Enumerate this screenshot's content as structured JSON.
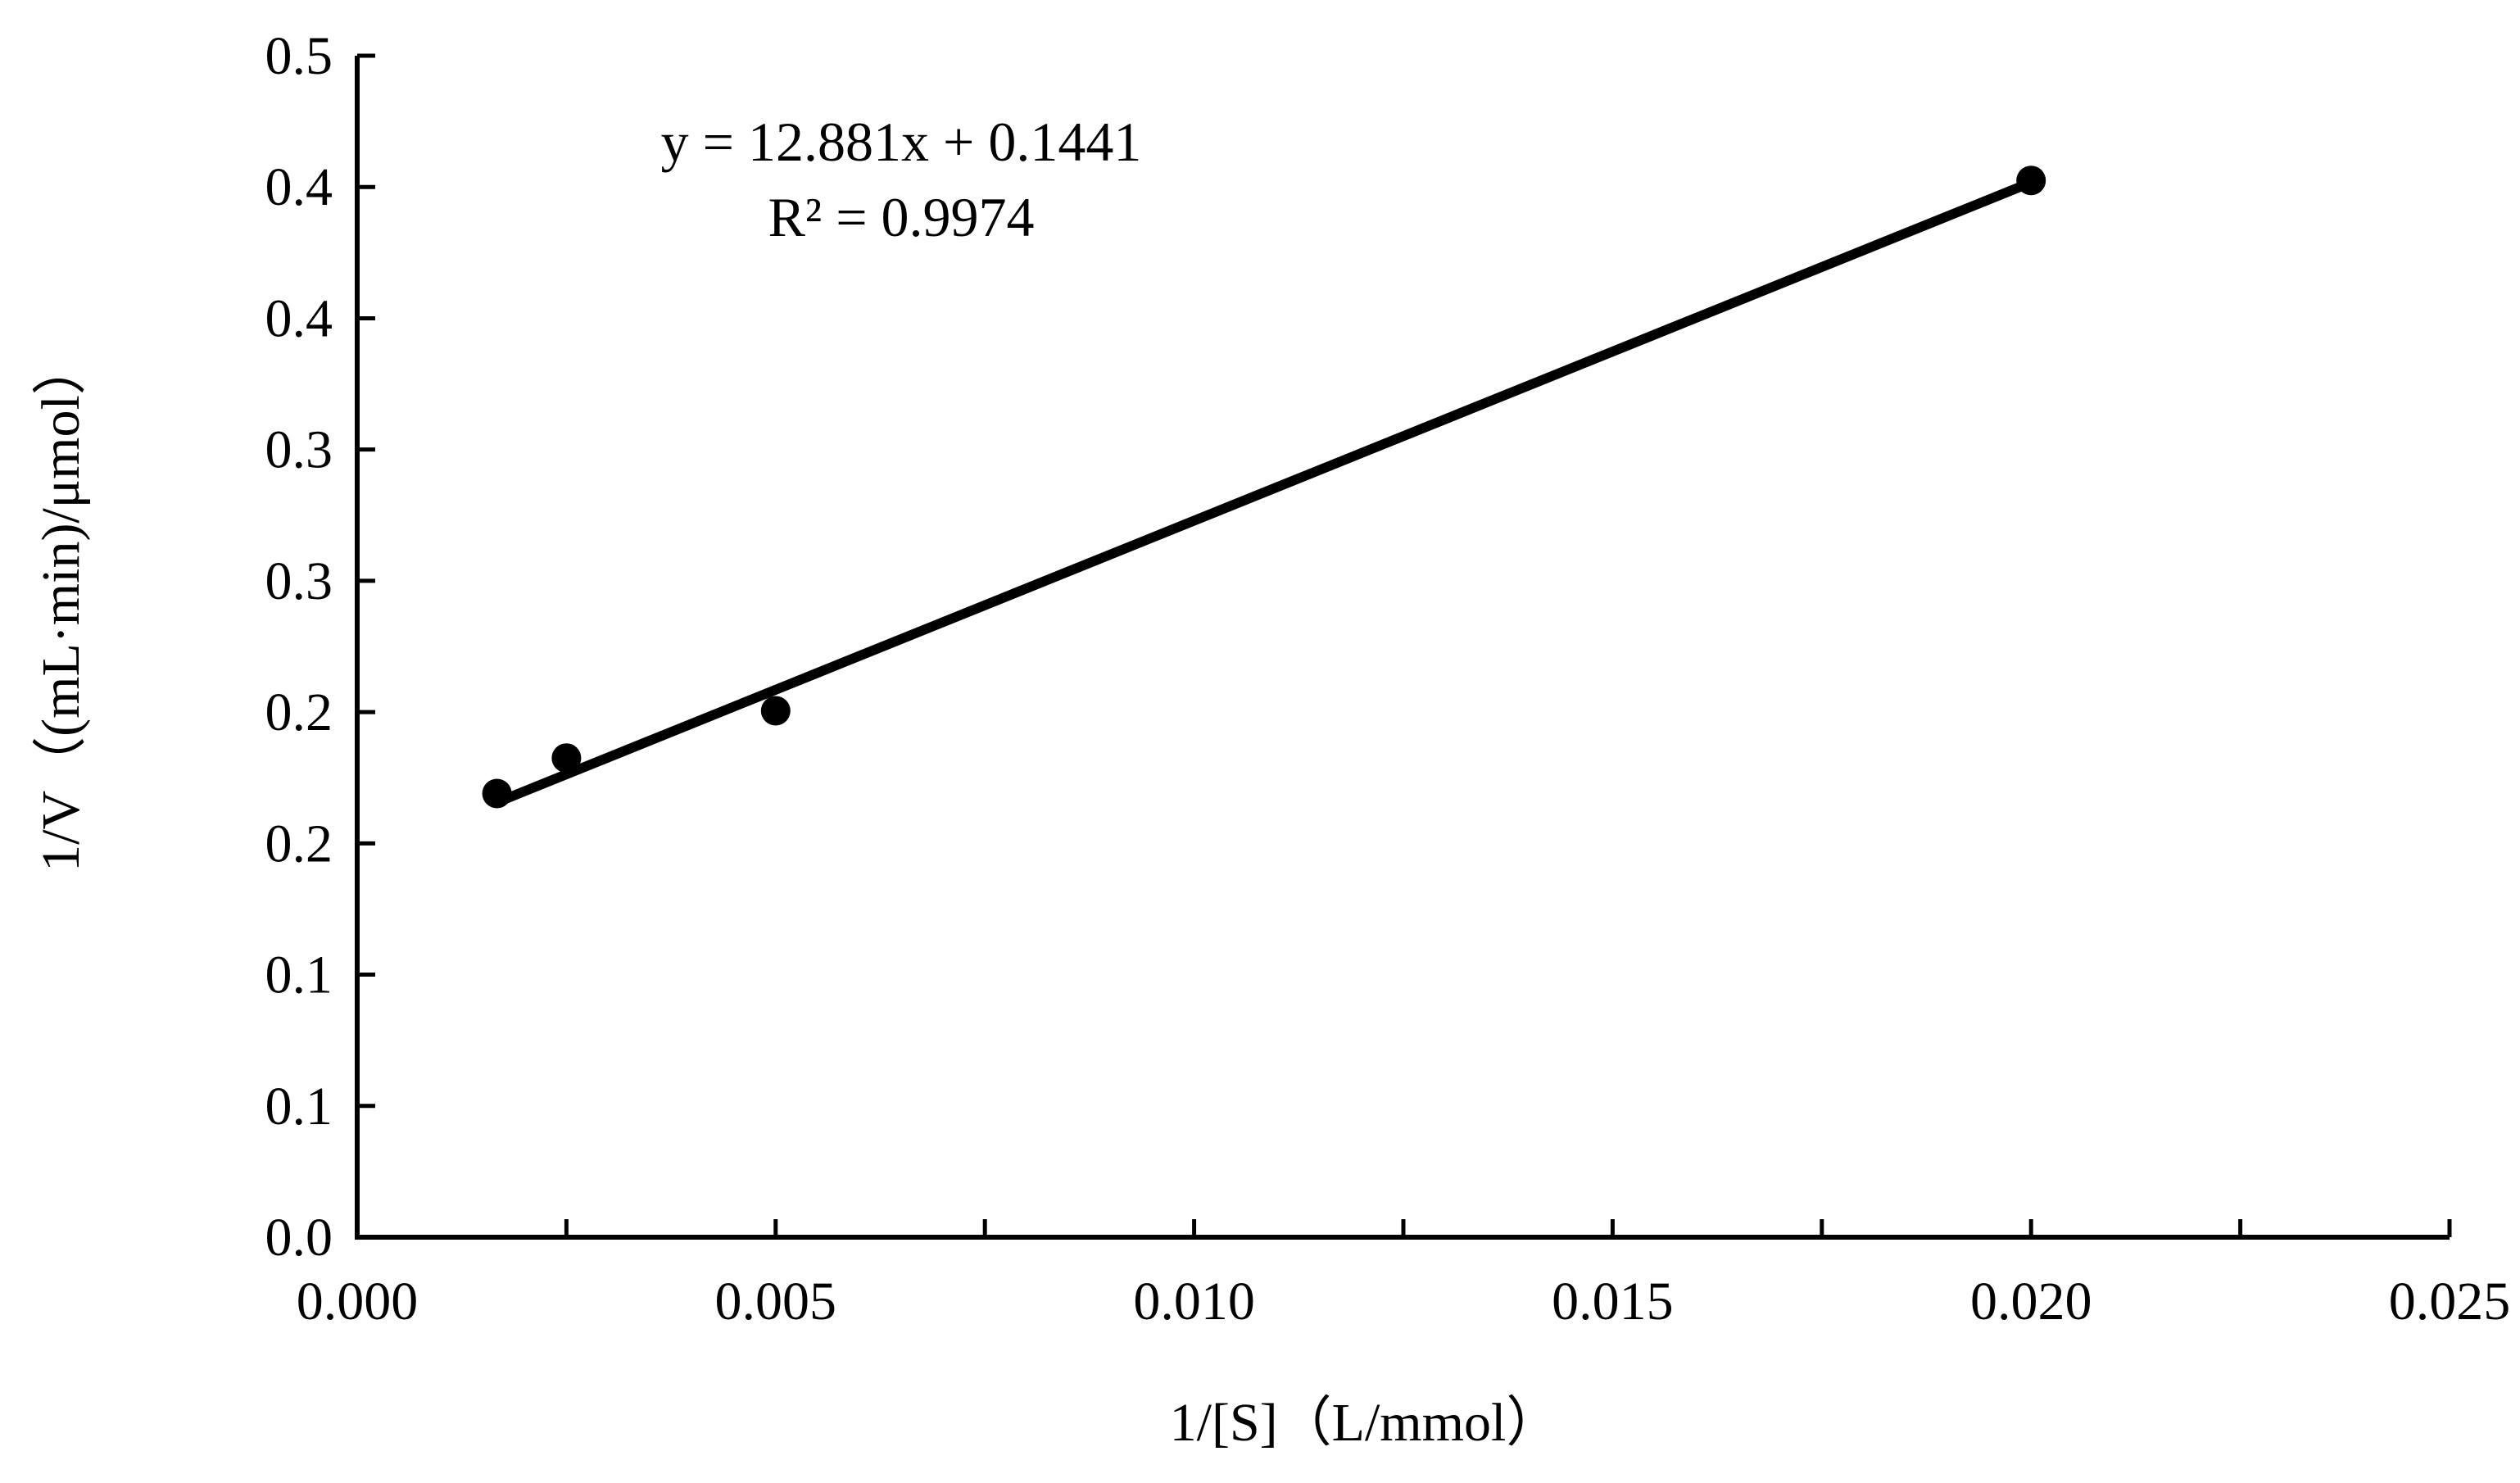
{
  "chart_data": {
    "type": "scatter",
    "title": "",
    "xlabel": "1/[S]（L/mmol）",
    "ylabel": "1/V（(mL·min)/μmol）",
    "xlim": [
      0.0,
      0.025
    ],
    "ylim": [
      0.0,
      0.45
    ],
    "x_ticks": [
      0.0,
      0.005,
      0.01,
      0.015,
      0.02,
      0.025
    ],
    "x_tick_labels": [
      "0.000",
      "0.005",
      "0.010",
      "0.015",
      "0.020",
      "0.025"
    ],
    "y_ticks": [
      0.0,
      0.05,
      0.1,
      0.15,
      0.2,
      0.25,
      0.3,
      0.35,
      0.4,
      0.45
    ],
    "y_tick_labels": [
      "0.0",
      "0.1",
      "0.1",
      "0.2",
      "0.2",
      "0.3",
      "0.3",
      "0.4",
      "0.4",
      "0.5"
    ],
    "grid": false,
    "series": [
      {
        "x": [
          0.00167,
          0.0025,
          0.005,
          0.02
        ],
        "y": [
          0.169,
          0.1825,
          0.2005,
          0.4025
        ]
      }
    ],
    "trendline": {
      "slope": 12.881,
      "intercept": 0.1441,
      "x_range": [
        0.00167,
        0.02
      ]
    },
    "annotations": {
      "equation": "y = 12.881x + 0.1441",
      "r_squared": "R² = 0.9974"
    }
  }
}
